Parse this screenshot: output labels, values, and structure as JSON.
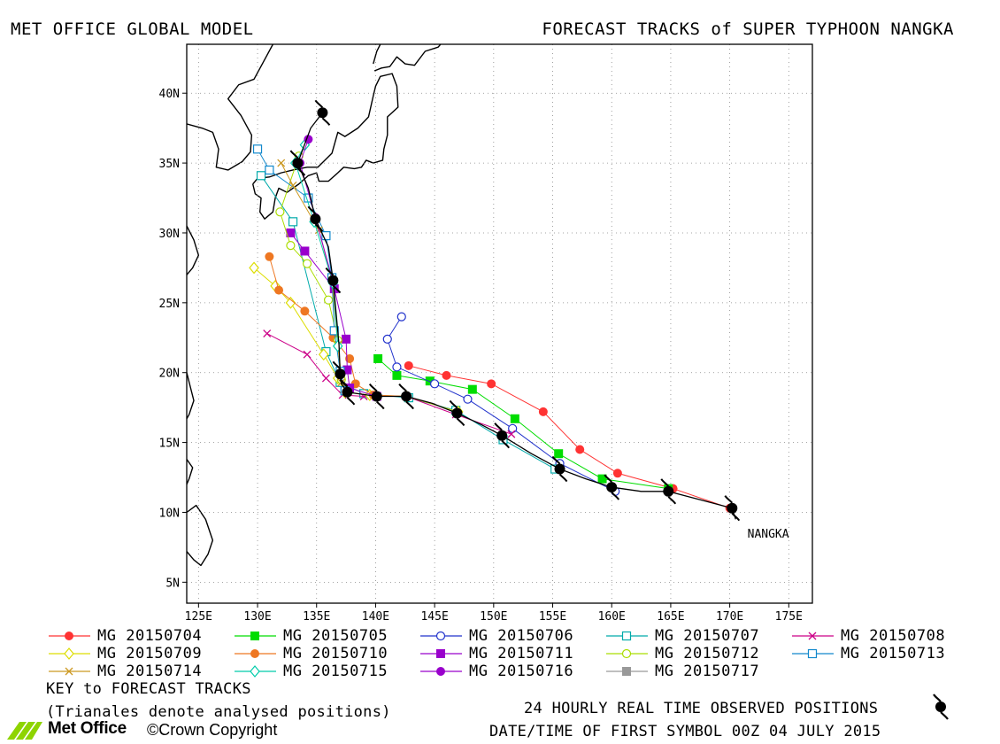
{
  "header": {
    "left_title": "MET OFFICE GLOBAL MODEL",
    "right_title": "FORECAST TRACKS of SUPER TYPHOON NANGKA"
  },
  "chart_data": {
    "type": "map",
    "xlim": [
      124,
      177
    ],
    "ylim": [
      3.5,
      43.5
    ],
    "x_ticks": [
      125,
      130,
      135,
      140,
      145,
      150,
      155,
      160,
      165,
      170,
      175
    ],
    "x_tick_labels": [
      "125E",
      "130E",
      "135E",
      "140E",
      "145E",
      "150E",
      "155E",
      "160E",
      "165E",
      "170E",
      "175E"
    ],
    "y_ticks": [
      5,
      10,
      15,
      20,
      25,
      30,
      35,
      40
    ],
    "y_tick_labels": [
      "5N",
      "10N",
      "15N",
      "20N",
      "25N",
      "30N",
      "35N",
      "40N"
    ],
    "grid": "dotted",
    "storm_label": "NANGKA",
    "storm_label_position": [
      171.5,
      8.2
    ],
    "observed_track": [
      [
        170.5,
        9.5
      ],
      [
        170.2,
        10.3
      ],
      [
        167.5,
        10.9
      ],
      [
        164.8,
        11.5
      ],
      [
        162.5,
        11.5
      ],
      [
        160.0,
        11.8
      ],
      [
        157.8,
        12.4
      ],
      [
        155.6,
        13.1
      ],
      [
        153.2,
        14.2
      ],
      [
        150.7,
        15.5
      ],
      [
        148.9,
        16.3
      ],
      [
        146.9,
        17.1
      ],
      [
        144.8,
        17.8
      ],
      [
        142.6,
        18.3
      ],
      [
        140.1,
        18.3
      ],
      [
        137.6,
        18.6
      ],
      [
        137.1,
        19.2
      ],
      [
        137.0,
        19.9
      ],
      [
        136.9,
        22.0
      ],
      [
        136.4,
        26.6
      ],
      [
        136.0,
        29.0
      ],
      [
        134.9,
        31.0
      ],
      [
        134.3,
        33.2
      ],
      [
        133.4,
        35.0
      ],
      [
        134.5,
        37.5
      ],
      [
        135.5,
        38.6
      ]
    ],
    "observed_symbols": [
      [
        170.2,
        10.3
      ],
      [
        164.8,
        11.5
      ],
      [
        160.0,
        11.8
      ],
      [
        155.6,
        13.1
      ],
      [
        150.7,
        15.5
      ],
      [
        146.9,
        17.1
      ],
      [
        142.6,
        18.3
      ],
      [
        140.1,
        18.3
      ],
      [
        137.6,
        18.6
      ],
      [
        137.0,
        19.9
      ],
      [
        136.4,
        26.6
      ],
      [
        134.9,
        31.0
      ],
      [
        133.4,
        35.0
      ],
      [
        135.5,
        38.6
      ]
    ],
    "series": [
      {
        "name": "MG 20150704",
        "color": "#ff3333",
        "marker": "filled-circle",
        "points": [
          [
            170.0,
            10.3
          ],
          [
            165.2,
            11.7
          ],
          [
            160.5,
            12.8
          ],
          [
            157.3,
            14.5
          ],
          [
            154.2,
            17.2
          ],
          [
            149.8,
            19.2
          ],
          [
            146.0,
            19.8
          ],
          [
            142.8,
            20.5
          ]
        ]
      },
      {
        "name": "MG 20150705",
        "color": "#00dd00",
        "marker": "filled-square",
        "points": [
          [
            164.8,
            11.7
          ],
          [
            159.2,
            12.4
          ],
          [
            155.5,
            14.2
          ],
          [
            151.8,
            16.7
          ],
          [
            148.2,
            18.8
          ],
          [
            144.6,
            19.4
          ],
          [
            141.8,
            19.8
          ],
          [
            140.2,
            21.0
          ]
        ]
      },
      {
        "name": "MG 20150706",
        "color": "#2233cc",
        "marker": "open-circle",
        "points": [
          [
            160.3,
            11.5
          ],
          [
            155.6,
            13.5
          ],
          [
            151.6,
            16.0
          ],
          [
            147.8,
            18.1
          ],
          [
            145.0,
            19.2
          ],
          [
            141.8,
            20.4
          ],
          [
            141.0,
            22.4
          ],
          [
            142.2,
            24.0
          ]
        ]
      },
      {
        "name": "MG 20150707",
        "color": "#00aaaa",
        "marker": "open-square",
        "points": [
          [
            155.2,
            13.1
          ],
          [
            150.8,
            15.2
          ],
          [
            146.8,
            17.3
          ],
          [
            142.8,
            18.2
          ],
          [
            139.0,
            18.5
          ],
          [
            137.0,
            19.3
          ],
          [
            135.8,
            21.5
          ],
          [
            133.0,
            30.8
          ],
          [
            130.3,
            34.1
          ]
        ]
      },
      {
        "name": "MG 20150708",
        "color": "#cc0088",
        "marker": "x",
        "points": [
          [
            151.5,
            15.6
          ],
          [
            146.8,
            17.0
          ],
          [
            142.6,
            18.3
          ],
          [
            139.0,
            18.3
          ],
          [
            137.2,
            18.4
          ],
          [
            135.8,
            19.6
          ],
          [
            134.2,
            21.3
          ],
          [
            130.8,
            22.8
          ]
        ]
      },
      {
        "name": "MG 20150709",
        "color": "#dddd00",
        "marker": "open-diamond",
        "points": [
          [
            147.0,
            17.2
          ],
          [
            142.6,
            18.3
          ],
          [
            139.5,
            18.4
          ],
          [
            137.4,
            18.6
          ],
          [
            136.8,
            19.6
          ],
          [
            135.6,
            21.3
          ],
          [
            132.8,
            25.0
          ],
          [
            131.5,
            26.2
          ],
          [
            129.7,
            27.5
          ]
        ]
      },
      {
        "name": "MG 20150710",
        "color": "#ee7722",
        "marker": "filled-circle",
        "points": [
          [
            142.6,
            18.3
          ],
          [
            139.8,
            18.4
          ],
          [
            138.3,
            19.2
          ],
          [
            137.8,
            21.0
          ],
          [
            136.4,
            22.5
          ],
          [
            134.0,
            24.4
          ],
          [
            131.8,
            25.9
          ],
          [
            131.0,
            28.3
          ]
        ]
      },
      {
        "name": "MG 20150711",
        "color": "#9900cc",
        "marker": "filled-square",
        "points": [
          [
            140.1,
            18.3
          ],
          [
            137.8,
            18.9
          ],
          [
            137.6,
            20.2
          ],
          [
            137.5,
            22.4
          ],
          [
            136.5,
            26.0
          ],
          [
            134.0,
            28.7
          ],
          [
            132.8,
            30.0
          ]
        ]
      },
      {
        "name": "MG 20150712",
        "color": "#aadd00",
        "marker": "open-circle",
        "points": [
          [
            137.6,
            18.6
          ],
          [
            137.1,
            19.5
          ],
          [
            136.8,
            22.3
          ],
          [
            136.0,
            25.2
          ],
          [
            134.2,
            27.8
          ],
          [
            132.8,
            29.1
          ],
          [
            131.9,
            31.5
          ],
          [
            133.5,
            35.5
          ]
        ]
      },
      {
        "name": "MG 20150713",
        "color": "#1188cc",
        "marker": "open-square",
        "points": [
          [
            137.4,
            18.7
          ],
          [
            137.0,
            20.1
          ],
          [
            136.5,
            23.0
          ],
          [
            136.3,
            26.8
          ],
          [
            135.8,
            29.8
          ],
          [
            134.3,
            32.5
          ],
          [
            131.0,
            34.5
          ],
          [
            130.0,
            36.0
          ]
        ]
      },
      {
        "name": "MG 20150714",
        "color": "#cc9922",
        "marker": "x",
        "points": [
          [
            137.1,
            19.3
          ],
          [
            136.8,
            22.0
          ],
          [
            136.3,
            26.6
          ],
          [
            135.2,
            30.2
          ],
          [
            133.0,
            33.4
          ],
          [
            132.0,
            35.0
          ]
        ]
      },
      {
        "name": "MG 20150715",
        "color": "#00ccaa",
        "marker": "open-diamond",
        "points": [
          [
            136.8,
            21.9
          ],
          [
            136.4,
            26.4
          ],
          [
            134.8,
            30.8
          ],
          [
            133.2,
            35.0
          ],
          [
            134.0,
            36.3
          ]
        ]
      },
      {
        "name": "MG 20150716",
        "color": "#9900cc",
        "marker": "filled-circle",
        "points": [
          [
            136.4,
            26.5
          ],
          [
            134.9,
            31.1
          ],
          [
            133.6,
            35.0
          ],
          [
            134.3,
            36.7
          ]
        ]
      },
      {
        "name": "MG 20150717",
        "color": "#999999",
        "marker": "filled-square",
        "points": []
      }
    ]
  },
  "legend": [
    {
      "label": "MG 20150704",
      "color": "#ff3333",
      "marker": "filled-circle"
    },
    {
      "label": "MG 20150705",
      "color": "#00dd00",
      "marker": "filled-square"
    },
    {
      "label": "MG 20150706",
      "color": "#2233cc",
      "marker": "open-circle"
    },
    {
      "label": "MG 20150707",
      "color": "#00aaaa",
      "marker": "open-square"
    },
    {
      "label": "MG 20150708",
      "color": "#cc0088",
      "marker": "x"
    },
    {
      "label": "MG 20150709",
      "color": "#dddd00",
      "marker": "open-diamond"
    },
    {
      "label": "MG 20150710",
      "color": "#ee7722",
      "marker": "filled-circle"
    },
    {
      "label": "MG 20150711",
      "color": "#9900cc",
      "marker": "filled-square"
    },
    {
      "label": "MG 20150712",
      "color": "#aadd00",
      "marker": "open-circle"
    },
    {
      "label": "MG 20150713",
      "color": "#1188cc",
      "marker": "open-square"
    },
    {
      "label": "MG 20150714",
      "color": "#cc9922",
      "marker": "x"
    },
    {
      "label": "MG 20150715",
      "color": "#00ccaa",
      "marker": "open-diamond"
    },
    {
      "label": "MG 20150716",
      "color": "#9900cc",
      "marker": "filled-circle"
    },
    {
      "label": "MG 20150717",
      "color": "#999999",
      "marker": "filled-square"
    }
  ],
  "footer": {
    "key_title": "KEY to FORECAST TRACKS",
    "key_note": "(Trianales denote analysed positions)",
    "observed_note": "24 HOURLY REAL TIME OBSERVED POSITIONS",
    "date_time": "DATE/TIME OF FIRST SYMBOL 00Z 04 JULY 2015",
    "brand": "Met Office",
    "copyright": "©Crown Copyright"
  }
}
